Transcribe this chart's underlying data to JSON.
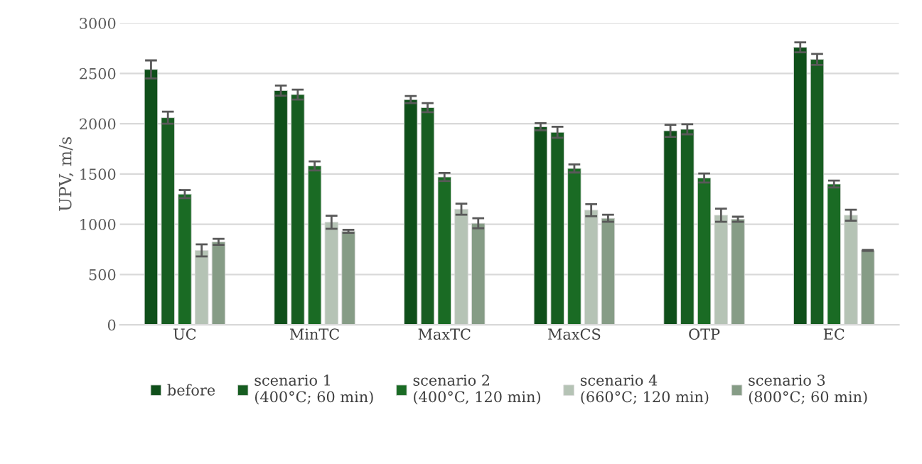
{
  "chart_data": {
    "type": "bar",
    "ylabel": "UPV, m/s",
    "categories": [
      "UC",
      "MinTC",
      "MaxTC",
      "MaxCS",
      "OTP",
      "EC"
    ],
    "series": [
      {
        "name": "before",
        "color": "#0f4f1a",
        "values": [
          2540,
          2330,
          2240,
          1970,
          1930,
          2760
        ],
        "errors": [
          90,
          50,
          35,
          35,
          60,
          50
        ]
      },
      {
        "name": "scenario 1\n(400°C; 60 min)",
        "color": "#175d21",
        "values": [
          2060,
          2290,
          2160,
          1915,
          1945,
          2640
        ],
        "errors": [
          60,
          50,
          45,
          55,
          50,
          55
        ]
      },
      {
        "name": "scenario 2\n(400°C, 120 min)",
        "color": "#1a6b24",
        "values": [
          1300,
          1580,
          1470,
          1555,
          1460,
          1400
        ],
        "errors": [
          40,
          45,
          40,
          40,
          45,
          35
        ]
      },
      {
        "name": "scenario 4\n(660°C; 120 min)",
        "color": "#b5c3b5",
        "values": [
          740,
          1020,
          1150,
          1140,
          1090,
          1090
        ],
        "errors": [
          60,
          65,
          55,
          60,
          65,
          55
        ]
      },
      {
        "name": "scenario 3\n(800°C; 60 min)",
        "color": "#869c86",
        "values": [
          825,
          930,
          1010,
          1060,
          1050,
          740
        ],
        "errors": [
          30,
          15,
          50,
          35,
          25,
          5
        ]
      }
    ],
    "ylim": [
      0,
      3000
    ],
    "yticks": [
      0,
      500,
      1000,
      1500,
      2000,
      2500,
      3000
    ],
    "grid": "y",
    "legend": "bottom"
  }
}
